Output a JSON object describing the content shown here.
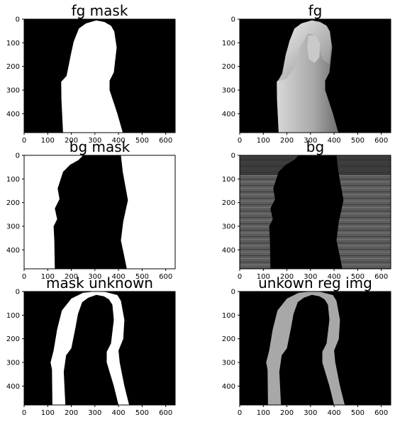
{
  "figure": {
    "axes_color": "#000000",
    "background": "#ffffff"
  },
  "chart_data": [
    {
      "type": "image",
      "title": "fg mask",
      "content": "binary mask: white foreground silhouette (woman) on black background",
      "xlim": [
        0,
        640
      ],
      "ylim": [
        480,
        0
      ],
      "xticks": [
        "0",
        "100",
        "200",
        "300",
        "400",
        "500",
        "600"
      ],
      "yticks": [
        "0",
        "100",
        "200",
        "300",
        "400"
      ]
    },
    {
      "type": "image",
      "title": "fg",
      "content": "grayscale foreground cut-out (blonde woman, hoodie) on black background",
      "xlim": [
        0,
        640
      ],
      "ylim": [
        480,
        0
      ],
      "xticks": [
        "0",
        "100",
        "200",
        "300",
        "400",
        "500",
        "600"
      ],
      "yticks": [
        "0",
        "100",
        "200",
        "300",
        "400"
      ]
    },
    {
      "type": "image",
      "title": "bg mask",
      "content": "binary mask: white background with black silhouette",
      "xlim": [
        0,
        640
      ],
      "ylim": [
        480,
        0
      ],
      "xticks": [
        "0",
        "100",
        "200",
        "300",
        "400",
        "500",
        "600"
      ],
      "yticks": [
        "0",
        "100",
        "200",
        "300",
        "400"
      ]
    },
    {
      "type": "image",
      "title": "bg",
      "content": "grayscale background (wooden wall) with black silhouette cut out",
      "xlim": [
        0,
        640
      ],
      "ylim": [
        480,
        0
      ],
      "xticks": [
        "0",
        "100",
        "200",
        "300",
        "400",
        "500",
        "600"
      ],
      "yticks": [
        "0",
        "100",
        "200",
        "300",
        "400"
      ]
    },
    {
      "type": "image",
      "title": "mask unknown",
      "content": "binary mask: white unknown band along silhouette edge on black",
      "xlim": [
        0,
        640
      ],
      "ylim": [
        480,
        0
      ],
      "xticks": [
        "0",
        "100",
        "200",
        "300",
        "400",
        "500",
        "600"
      ],
      "yticks": [
        "0",
        "100",
        "200",
        "300",
        "400"
      ]
    },
    {
      "type": "image",
      "title": "unkown reg img",
      "content": "grayscale image pixels within unknown edge band on black",
      "xlim": [
        0,
        640
      ],
      "ylim": [
        480,
        0
      ],
      "xticks": [
        "0",
        "100",
        "200",
        "300",
        "400",
        "500",
        "600"
      ],
      "yticks": [
        "0",
        "100",
        "200",
        "300",
        "400"
      ]
    }
  ]
}
